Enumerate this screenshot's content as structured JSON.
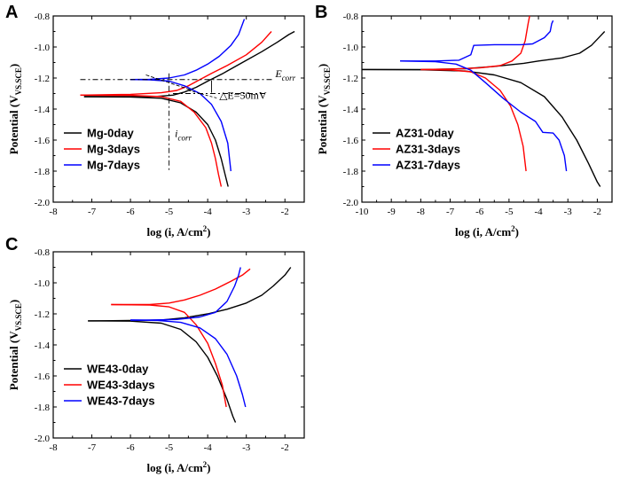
{
  "chart_data": [
    {
      "type": "line",
      "panel": "A",
      "xlabel": "log (i, A/cm",
      "xlabel_sup": "2",
      "xlabel_end": ")",
      "ylabel": "Potential (V",
      "ylabel_sub": "VS.SCE",
      "ylabel_end": ")",
      "xlim": [
        -8,
        -1.5
      ],
      "ylim": [
        -2.0,
        -0.8
      ],
      "xticks": [
        -8,
        -7,
        -6,
        -5,
        -4,
        -3,
        -2
      ],
      "xtick_labels": [
        "-8",
        "-7",
        "-6",
        "-5",
        "-4",
        "-3",
        "-2"
      ],
      "yticks": [
        -2.0,
        -1.8,
        -1.6,
        -1.4,
        -1.2,
        -1.0,
        -0.8
      ],
      "ytick_labels": [
        "-2.0",
        "-1.8",
        "-1.6",
        "-1.4",
        "-1.2",
        "-1.0",
        "-0.8"
      ],
      "legend_position": "lower-left",
      "series": [
        {
          "name": "Mg-0day",
          "color": "#000000",
          "anodic": [
            [
              -7.2,
              -1.32
            ],
            [
              -6,
              -1.32
            ],
            [
              -5.3,
              -1.318
            ],
            [
              -4.9,
              -1.31
            ],
            [
              -4.6,
              -1.29
            ],
            [
              -4.3,
              -1.26
            ],
            [
              -4.0,
              -1.22
            ],
            [
              -3.6,
              -1.17
            ],
            [
              -3.1,
              -1.1
            ],
            [
              -2.6,
              -1.03
            ],
            [
              -2.2,
              -0.97
            ],
            [
              -1.9,
              -0.92
            ],
            [
              -1.75,
              -0.9
            ]
          ],
          "cathodic": [
            [
              -7.2,
              -1.32
            ],
            [
              -6,
              -1.322
            ],
            [
              -5.2,
              -1.33
            ],
            [
              -4.7,
              -1.36
            ],
            [
              -4.3,
              -1.42
            ],
            [
              -4.0,
              -1.5
            ],
            [
              -3.8,
              -1.6
            ],
            [
              -3.65,
              -1.72
            ],
            [
              -3.55,
              -1.82
            ],
            [
              -3.47,
              -1.9
            ]
          ]
        },
        {
          "name": "Mg-3days",
          "color": "#ff0000",
          "anodic": [
            [
              -7.3,
              -1.31
            ],
            [
              -6,
              -1.305
            ],
            [
              -5.2,
              -1.295
            ],
            [
              -4.8,
              -1.28
            ],
            [
              -4.5,
              -1.25
            ],
            [
              -4.2,
              -1.21
            ],
            [
              -3.9,
              -1.17
            ],
            [
              -3.5,
              -1.12
            ],
            [
              -3.0,
              -1.05
            ],
            [
              -2.6,
              -0.97
            ],
            [
              -2.35,
              -0.9
            ]
          ],
          "cathodic": [
            [
              -7.3,
              -1.31
            ],
            [
              -6,
              -1.312
            ],
            [
              -5.2,
              -1.32
            ],
            [
              -4.7,
              -1.35
            ],
            [
              -4.35,
              -1.42
            ],
            [
              -4.05,
              -1.52
            ],
            [
              -3.9,
              -1.62
            ],
            [
              -3.8,
              -1.72
            ],
            [
              -3.72,
              -1.82
            ],
            [
              -3.65,
              -1.9
            ]
          ]
        },
        {
          "name": "Mg-7days",
          "color": "#0000ff",
          "anodic": [
            [
              -6.0,
              -1.21
            ],
            [
              -5.5,
              -1.208
            ],
            [
              -5.0,
              -1.2
            ],
            [
              -4.6,
              -1.18
            ],
            [
              -4.3,
              -1.15
            ],
            [
              -4.0,
              -1.11
            ],
            [
              -3.7,
              -1.06
            ],
            [
              -3.4,
              -0.99
            ],
            [
              -3.2,
              -0.92
            ],
            [
              -3.05,
              -0.82
            ]
          ],
          "cathodic": [
            [
              -6.0,
              -1.21
            ],
            [
              -5.5,
              -1.212
            ],
            [
              -5.0,
              -1.22
            ],
            [
              -4.6,
              -1.25
            ],
            [
              -4.2,
              -1.3
            ],
            [
              -3.9,
              -1.37
            ],
            [
              -3.65,
              -1.48
            ],
            [
              -3.48,
              -1.62
            ],
            [
              -3.4,
              -1.8
            ]
          ]
        }
      ],
      "annotations": {
        "ecorr": "E",
        "ecorr_sub": "corr",
        "icorr": "i",
        "icorr_sub": "corr",
        "delta": "△E=50mV"
      }
    },
    {
      "type": "line",
      "panel": "B",
      "xlabel": "log (i, A/cm",
      "xlabel_sup": "2",
      "xlabel_end": ")",
      "ylabel": "Potential (V",
      "ylabel_sub": "VS.SCE",
      "ylabel_end": ")",
      "xlim": [
        -10,
        -1.5
      ],
      "ylim": [
        -2.0,
        -0.8
      ],
      "xticks": [
        -10,
        -9,
        -8,
        -7,
        -6,
        -5,
        -4,
        -3,
        -2
      ],
      "xtick_labels": [
        "-10",
        "-9",
        "-8",
        "-7",
        "-6",
        "-5",
        "-4",
        "-3",
        "-2"
      ],
      "yticks": [
        -2.0,
        -1.8,
        -1.6,
        -1.4,
        -1.2,
        -1.0,
        -0.8
      ],
      "ytick_labels": [
        "-2.0",
        "-1.8",
        "-1.6",
        "-1.4",
        "-1.2",
        "-1.0",
        "-0.8"
      ],
      "legend_position": "lower-left",
      "series": [
        {
          "name": "AZ31-0day",
          "color": "#000000",
          "anodic": [
            [
              -10,
              -1.145
            ],
            [
              -8,
              -1.145
            ],
            [
              -6.5,
              -1.14
            ],
            [
              -5.5,
              -1.125
            ],
            [
              -4.5,
              -1.105
            ],
            [
              -4.0,
              -1.09
            ],
            [
              -3.2,
              -1.07
            ],
            [
              -2.6,
              -1.04
            ],
            [
              -2.2,
              -0.99
            ],
            [
              -1.9,
              -0.93
            ],
            [
              -1.75,
              -0.9
            ]
          ],
          "cathodic": [
            [
              -10,
              -1.145
            ],
            [
              -8,
              -1.147
            ],
            [
              -6.5,
              -1.155
            ],
            [
              -5.5,
              -1.18
            ],
            [
              -4.6,
              -1.23
            ],
            [
              -3.8,
              -1.32
            ],
            [
              -3.2,
              -1.45
            ],
            [
              -2.7,
              -1.6
            ],
            [
              -2.3,
              -1.75
            ],
            [
              -2.0,
              -1.87
            ],
            [
              -1.9,
              -1.9
            ]
          ]
        },
        {
          "name": "AZ31-3days",
          "color": "#ff0000",
          "anodic": [
            [
              -8.0,
              -1.145
            ],
            [
              -7.0,
              -1.143
            ],
            [
              -6.0,
              -1.135
            ],
            [
              -5.3,
              -1.12
            ],
            [
              -4.9,
              -1.09
            ],
            [
              -4.6,
              -1.04
            ],
            [
              -4.45,
              -0.96
            ],
            [
              -4.35,
              -0.85
            ],
            [
              -4.3,
              -0.8
            ]
          ],
          "cathodic": [
            [
              -8.0,
              -1.145
            ],
            [
              -7.0,
              -1.148
            ],
            [
              -6.3,
              -1.16
            ],
            [
              -5.8,
              -1.2
            ],
            [
              -5.3,
              -1.28
            ],
            [
              -4.95,
              -1.38
            ],
            [
              -4.7,
              -1.5
            ],
            [
              -4.52,
              -1.64
            ],
            [
              -4.42,
              -1.8
            ]
          ]
        },
        {
          "name": "AZ31-7days",
          "color": "#0000ff",
          "anodic": [
            [
              -8.7,
              -1.09
            ],
            [
              -7.5,
              -1.09
            ],
            [
              -6.7,
              -1.085
            ],
            [
              -6.3,
              -1.05
            ],
            [
              -6.2,
              -0.99
            ],
            [
              -5.5,
              -0.985
            ],
            [
              -4.6,
              -0.985
            ],
            [
              -4.2,
              -0.98
            ],
            [
              -3.8,
              -0.94
            ],
            [
              -3.6,
              -0.9
            ],
            [
              -3.55,
              -0.85
            ],
            [
              -3.5,
              -0.83
            ]
          ],
          "cathodic": [
            [
              -8.7,
              -1.09
            ],
            [
              -7.5,
              -1.095
            ],
            [
              -6.8,
              -1.11
            ],
            [
              -6.3,
              -1.15
            ],
            [
              -5.8,
              -1.23
            ],
            [
              -5.2,
              -1.33
            ],
            [
              -4.6,
              -1.42
            ],
            [
              -4.1,
              -1.48
            ],
            [
              -3.85,
              -1.55
            ],
            [
              -3.5,
              -1.555
            ],
            [
              -3.3,
              -1.6
            ],
            [
              -3.12,
              -1.7
            ],
            [
              -3.05,
              -1.8
            ]
          ]
        }
      ]
    },
    {
      "type": "line",
      "panel": "C",
      "xlabel": "log (i, A/cm",
      "xlabel_sup": "2",
      "xlabel_end": ")",
      "ylabel": "Potential (V",
      "ylabel_sub": "VS.SCE",
      "ylabel_end": ")",
      "xlim": [
        -8,
        -1.5
      ],
      "ylim": [
        -2.0,
        -0.8
      ],
      "xticks": [
        -8,
        -7,
        -6,
        -5,
        -4,
        -3,
        -2
      ],
      "xtick_labels": [
        "-8",
        "-7",
        "-6",
        "-5",
        "-4",
        "-3",
        "-2"
      ],
      "yticks": [
        -2.0,
        -1.8,
        -1.6,
        -1.4,
        -1.2,
        -1.0,
        -0.8
      ],
      "ytick_labels": [
        "-2.0",
        "-1.8",
        "-1.6",
        "-1.4",
        "-1.2",
        "-1.0",
        "-0.8"
      ],
      "legend_position": "lower-left",
      "series": [
        {
          "name": "WE43-0day",
          "color": "#000000",
          "anodic": [
            [
              -7.1,
              -1.245
            ],
            [
              -6,
              -1.243
            ],
            [
              -5.2,
              -1.24
            ],
            [
              -4.6,
              -1.225
            ],
            [
              -4.0,
              -1.2
            ],
            [
              -3.5,
              -1.17
            ],
            [
              -3.0,
              -1.13
            ],
            [
              -2.6,
              -1.08
            ],
            [
              -2.3,
              -1.02
            ],
            [
              -2.0,
              -0.95
            ],
            [
              -1.85,
              -0.9
            ]
          ],
          "cathodic": [
            [
              -7.1,
              -1.245
            ],
            [
              -6,
              -1.247
            ],
            [
              -5.2,
              -1.26
            ],
            [
              -4.7,
              -1.3
            ],
            [
              -4.3,
              -1.38
            ],
            [
              -4.0,
              -1.48
            ],
            [
              -3.75,
              -1.6
            ],
            [
              -3.5,
              -1.75
            ],
            [
              -3.35,
              -1.86
            ],
            [
              -3.28,
              -1.9
            ]
          ]
        },
        {
          "name": "WE43-3days",
          "color": "#ff0000",
          "anodic": [
            [
              -6.5,
              -1.14
            ],
            [
              -5.5,
              -1.14
            ],
            [
              -5.0,
              -1.13
            ],
            [
              -4.6,
              -1.11
            ],
            [
              -4.2,
              -1.08
            ],
            [
              -3.8,
              -1.04
            ],
            [
              -3.4,
              -0.99
            ],
            [
              -3.1,
              -0.95
            ],
            [
              -2.9,
              -0.91
            ]
          ],
          "cathodic": [
            [
              -6.5,
              -1.14
            ],
            [
              -5.5,
              -1.143
            ],
            [
              -5.0,
              -1.155
            ],
            [
              -4.6,
              -1.19
            ],
            [
              -4.3,
              -1.27
            ],
            [
              -4.0,
              -1.39
            ],
            [
              -3.8,
              -1.52
            ],
            [
              -3.62,
              -1.66
            ],
            [
              -3.52,
              -1.8
            ]
          ]
        },
        {
          "name": "WE43-7days",
          "color": "#0000ff",
          "anodic": [
            [
              -6.0,
              -1.24
            ],
            [
              -5.5,
              -1.24
            ],
            [
              -4.8,
              -1.236
            ],
            [
              -4.2,
              -1.22
            ],
            [
              -3.8,
              -1.19
            ],
            [
              -3.5,
              -1.12
            ],
            [
              -3.3,
              -1.02
            ],
            [
              -3.2,
              -0.95
            ],
            [
              -3.15,
              -0.9
            ]
          ],
          "cathodic": [
            [
              -6.0,
              -1.24
            ],
            [
              -5.3,
              -1.242
            ],
            [
              -4.7,
              -1.255
            ],
            [
              -4.2,
              -1.29
            ],
            [
              -3.8,
              -1.36
            ],
            [
              -3.5,
              -1.46
            ],
            [
              -3.25,
              -1.6
            ],
            [
              -3.1,
              -1.72
            ],
            [
              -3.02,
              -1.8
            ]
          ]
        }
      ]
    }
  ]
}
